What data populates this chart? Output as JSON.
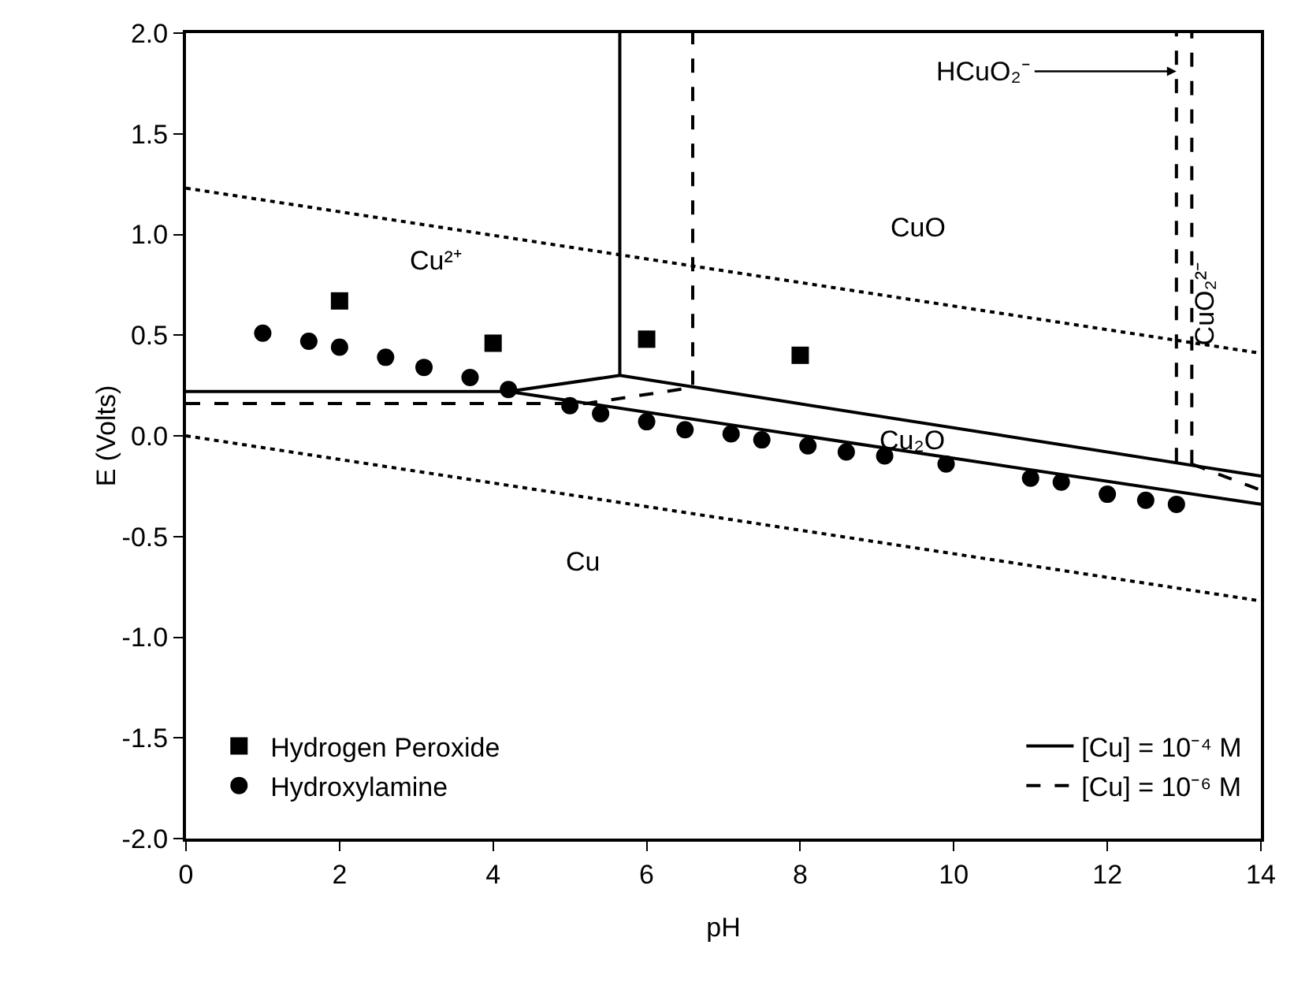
{
  "chart_data": {
    "type": "scatter",
    "xlabel": "pH",
    "ylabel": "E (Volts)",
    "xlim": [
      0,
      14
    ],
    "xticks": [
      0,
      2,
      4,
      6,
      8,
      10,
      12,
      14
    ],
    "ylim": [
      -2.0,
      2.0
    ],
    "yticks": [
      {
        "value": -2,
        "label": "-2.0"
      },
      {
        "value": -1.5,
        "label": "-1.5"
      },
      {
        "value": -1,
        "label": "-1.0"
      },
      {
        "value": -0.5,
        "label": "-0.5"
      },
      {
        "value": 0,
        "label": "0.0"
      },
      {
        "value": 0.5,
        "label": "0.5"
      },
      {
        "value": 1,
        "label": "1.0"
      },
      {
        "value": 1.5,
        "label": "1.5"
      },
      {
        "value": 2,
        "label": "2.0"
      }
    ],
    "grid": false,
    "legend": "bottom",
    "series": [
      {
        "name": "Hydrogen Peroxide",
        "color": "#000000",
        "marker": "square",
        "x": [
          2.0,
          4.0,
          6.0,
          8.0
        ],
        "values": [
          0.67,
          0.46,
          0.48,
          0.4
        ]
      },
      {
        "name": "Hydroxylamine",
        "color": "#000000",
        "marker": "circle",
        "x": [
          1.0,
          1.6,
          2.0,
          2.6,
          3.1,
          3.7,
          4.2,
          5.0,
          5.4,
          6.0,
          6.5,
          7.1,
          7.5,
          8.1,
          8.6,
          9.1,
          9.9,
          11.0,
          11.4,
          12.0,
          12.5,
          12.9
        ],
        "values": [
          0.51,
          0.47,
          0.44,
          0.39,
          0.34,
          0.29,
          0.23,
          0.15,
          0.11,
          0.07,
          0.03,
          0.01,
          -0.02,
          -0.05,
          -0.08,
          -0.1,
          -0.14,
          -0.21,
          -0.23,
          -0.29,
          -0.32,
          -0.34
        ]
      },
      {
        "name": "[Cu] = 10⁻⁴ M",
        "type": "line",
        "color": "#000000",
        "line_style": "solid",
        "x": [
          0,
          4.2,
          14
        ],
        "values": [
          0.22,
          0.22,
          -0.34
        ]
      },
      {
        "type": "line",
        "color": "#000000",
        "line_style": "solid",
        "x": [
          4.2,
          5.65,
          14
        ],
        "values": [
          0.22,
          0.3,
          -0.2
        ]
      },
      {
        "type": "line",
        "color": "#000000",
        "line_style": "solid",
        "x": [
          5.65,
          5.65
        ],
        "values": [
          0.3,
          2.0
        ]
      },
      {
        "name": "[Cu] = 10⁻⁶ M",
        "type": "line",
        "color": "#000000",
        "line_style": "dashed",
        "x": [
          0,
          5.2,
          6.6,
          6.6
        ],
        "values": [
          0.16,
          0.16,
          0.24,
          2.0
        ]
      },
      {
        "type": "line",
        "color": "#000000",
        "line_style": "dashed",
        "x": [
          12.9,
          12.9
        ],
        "values": [
          -0.13,
          2.0
        ]
      },
      {
        "type": "line",
        "color": "#000000",
        "line_style": "dashed",
        "x": [
          13.1,
          13.1
        ],
        "values": [
          -0.14,
          2.0
        ]
      },
      {
        "type": "line",
        "color": "#000000",
        "line_style": "dashed",
        "x": [
          13.1,
          14
        ],
        "values": [
          -0.14,
          -0.27
        ]
      },
      {
        "type": "line",
        "color": "#000000",
        "line_style": "dotted",
        "x": [
          0,
          14
        ],
        "values": [
          1.23,
          0.41
        ]
      },
      {
        "type": "line",
        "color": "#000000",
        "line_style": "dotted",
        "x": [
          0,
          14
        ],
        "values": [
          0.0,
          -0.82
        ]
      }
    ],
    "annotations": [
      "Cu²⁺",
      "CuO",
      "Cu₂O",
      "Cu",
      {
        "text": "HCuO₂⁻",
        "x": 12.9,
        "y": 1.81
      },
      "CuO₂²⁻"
    ]
  }
}
